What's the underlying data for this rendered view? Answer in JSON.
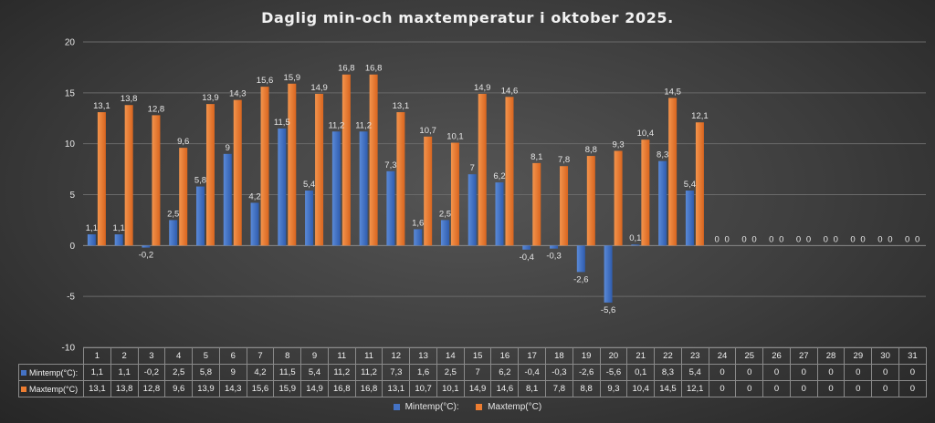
{
  "chart_data": {
    "type": "bar",
    "title": "Daglig min-och maxtemperatur i oktober 2025.",
    "categories": [
      "1",
      "2",
      "3",
      "4",
      "5",
      "6",
      "7",
      "8",
      "9",
      "11",
      "11",
      "12",
      "13",
      "14",
      "15",
      "16",
      "17",
      "18",
      "19",
      "20",
      "21",
      "22",
      "23",
      "24",
      "25",
      "26",
      "27",
      "28",
      "29",
      "30",
      "31"
    ],
    "series": [
      {
        "name": "Mintemp(°C):",
        "color": "#4472c4",
        "values": [
          1.1,
          1.1,
          -0.2,
          2.5,
          5.8,
          9,
          4.2,
          11.5,
          5.4,
          11.2,
          11.2,
          7.3,
          1.6,
          2.5,
          7,
          6.2,
          -0.4,
          -0.3,
          -2.6,
          -5.6,
          0.1,
          8.3,
          5.4,
          0,
          0,
          0,
          0,
          0,
          0,
          0,
          0
        ],
        "labels": [
          "1,1",
          "1,1",
          "-0,2",
          "2,5",
          "5,8",
          "9",
          "4,2",
          "11,5",
          "5,4",
          "11,2",
          "11,2",
          "7,3",
          "1,6",
          "2,5",
          "7",
          "6,2",
          "-0,4",
          "-0,3",
          "-2,6",
          "-5,6",
          "0,1",
          "8,3",
          "5,4",
          "0",
          "0",
          "0",
          "0",
          "0",
          "0",
          "0",
          "0"
        ]
      },
      {
        "name": "Maxtemp(°C)",
        "color": "#ed7d31",
        "values": [
          13.1,
          13.8,
          12.8,
          9.6,
          13.9,
          14.3,
          15.6,
          15.9,
          14.9,
          16.8,
          16.8,
          13.1,
          10.7,
          10.1,
          14.9,
          14.6,
          8.1,
          7.8,
          8.8,
          9.3,
          10.4,
          14.5,
          12.1,
          0,
          0,
          0,
          0,
          0,
          0,
          0,
          0
        ],
        "labels": [
          "13,1",
          "13,8",
          "12,8",
          "9,6",
          "13,9",
          "14,3",
          "15,6",
          "15,9",
          "14,9",
          "16,8",
          "16,8",
          "13,1",
          "10,7",
          "10,1",
          "14,9",
          "14,6",
          "8,1",
          "7,8",
          "8,8",
          "9,3",
          "10,4",
          "14,5",
          "12,1",
          "0",
          "0",
          "0",
          "0",
          "0",
          "0",
          "0",
          "0"
        ]
      }
    ],
    "table_row_labels": [
      "Mintemp(°C):",
      "Maxtemp(°C)"
    ],
    "ylim": [
      -10,
      20
    ],
    "yticks": [
      "-10",
      "-5",
      "0",
      "5",
      "10",
      "15",
      "20"
    ],
    "grid": true,
    "legend": "bottom",
    "colors": {
      "grid": "#6a6a6a",
      "table_border": "#8a8a8a",
      "text": "#e6e6e6"
    }
  }
}
